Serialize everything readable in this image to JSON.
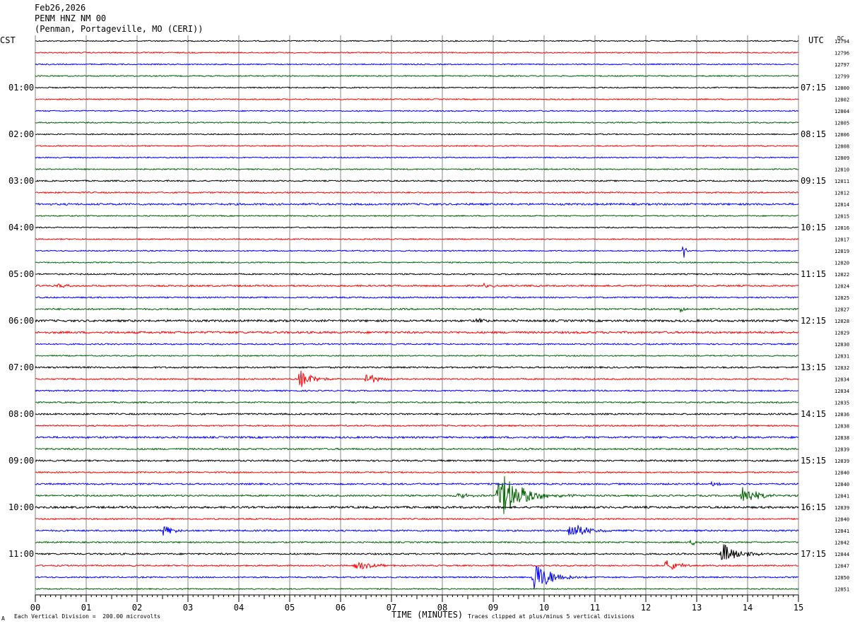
{
  "header": {
    "date": "Feb26,2026",
    "station": "PENM HNZ NM 00",
    "location": "(Penman, Portageville, MO (CERI))"
  },
  "axis_titles": {
    "left_tz": "CST",
    "right_tz": "UTC",
    "dc": "DC",
    "xlabel": "TIME (MINUTES)"
  },
  "footer": {
    "scale_note": "Each Vertical Division =  200.00 microvolts",
    "clip_note": "Traces clipped at plus/minus 5 vertical divisions",
    "corner_mark": "A"
  },
  "colors": [
    "#000000",
    "#ff0000",
    "#0000ff",
    "#006400"
  ],
  "chart_data": {
    "type": "line",
    "title": "",
    "xlabel": "TIME (MINUTES)",
    "ylabel": "",
    "xlim": [
      0,
      15
    ],
    "x_ticks": [
      "00",
      "01",
      "02",
      "03",
      "04",
      "05",
      "06",
      "07",
      "08",
      "09",
      "10",
      "11",
      "12",
      "13",
      "14",
      "15"
    ],
    "grid": true,
    "left_hour_labels": [
      "01:00",
      "02:00",
      "03:00",
      "04:00",
      "05:00",
      "06:00",
      "07:00",
      "08:00",
      "09:00",
      "10:00",
      "11:00"
    ],
    "right_hour_labels": [
      "07:15",
      "08:15",
      "09:15",
      "10:15",
      "11:15",
      "12:15",
      "13:15",
      "14:15",
      "15:15",
      "16:15",
      "17:15"
    ],
    "trace_dc": [
      "12794",
      "12796",
      "12797",
      "12799",
      "12800",
      "12802",
      "12804",
      "12805",
      "12806",
      "12808",
      "12809",
      "12810",
      "12811",
      "12812",
      "12814",
      "12815",
      "12816",
      "12817",
      "12819",
      "12820",
      "12822",
      "12824",
      "12825",
      "12827",
      "12828",
      "12829",
      "12830",
      "12831",
      "12832",
      "12834",
      "12834",
      "12835",
      "12836",
      "12838",
      "12838",
      "12839",
      "12839",
      "12840",
      "12840",
      "12841",
      "12839",
      "12840",
      "12841",
      "12842",
      "12844",
      "12847",
      "12850",
      "12851"
    ],
    "noise_levels": [
      1,
      1,
      1,
      1,
      1,
      1,
      1,
      1,
      1,
      1,
      1,
      1,
      1.2,
      1.2,
      1.6,
      1,
      1,
      1,
      1,
      1,
      1.2,
      1.4,
      1.2,
      1.4,
      1.8,
      1.8,
      1.2,
      1,
      1.4,
      1.2,
      1.2,
      1.2,
      1.4,
      1.2,
      1.6,
      1.4,
      1.4,
      1.2,
      1.4,
      1.4,
      1.8,
      1.2,
      1.4,
      1.2,
      1.4,
      1.2,
      1.2,
      1
    ],
    "events": [
      {
        "trace": 18,
        "minute": 12.75,
        "amp": 14,
        "dur": 0.08
      },
      {
        "trace": 21,
        "minute": 0.4,
        "amp": 3,
        "dur": 0.5
      },
      {
        "trace": 21,
        "minute": 8.8,
        "amp": 3,
        "dur": 0.4
      },
      {
        "trace": 23,
        "minute": 12.7,
        "amp": 6,
        "dur": 0.1
      },
      {
        "trace": 24,
        "minute": 8.7,
        "amp": 4,
        "dur": 0.3
      },
      {
        "trace": 29,
        "minute": 5.2,
        "amp": 14,
        "dur": 0.5
      },
      {
        "trace": 29,
        "minute": 6.5,
        "amp": 10,
        "dur": 0.4
      },
      {
        "trace": 38,
        "minute": 13.3,
        "amp": 3,
        "dur": 0.3
      },
      {
        "trace": 39,
        "minute": 9.1,
        "amp": 36,
        "dur": 0.9
      },
      {
        "trace": 39,
        "minute": 13.9,
        "amp": 14,
        "dur": 0.6
      },
      {
        "trace": 39,
        "minute": 8.3,
        "amp": 5,
        "dur": 0.4
      },
      {
        "trace": 42,
        "minute": 2.5,
        "amp": 8,
        "dur": 0.4
      },
      {
        "trace": 42,
        "minute": 10.5,
        "amp": 14,
        "dur": 0.6
      },
      {
        "trace": 43,
        "minute": 12.9,
        "amp": 4,
        "dur": 0.3
      },
      {
        "trace": 44,
        "minute": 13.5,
        "amp": 16,
        "dur": 0.7
      },
      {
        "trace": 45,
        "minute": 6.3,
        "amp": 7,
        "dur": 0.6
      },
      {
        "trace": 45,
        "minute": 12.4,
        "amp": 9,
        "dur": 0.5
      },
      {
        "trace": 46,
        "minute": 9.8,
        "amp": 24,
        "dur": 0.7
      }
    ]
  }
}
